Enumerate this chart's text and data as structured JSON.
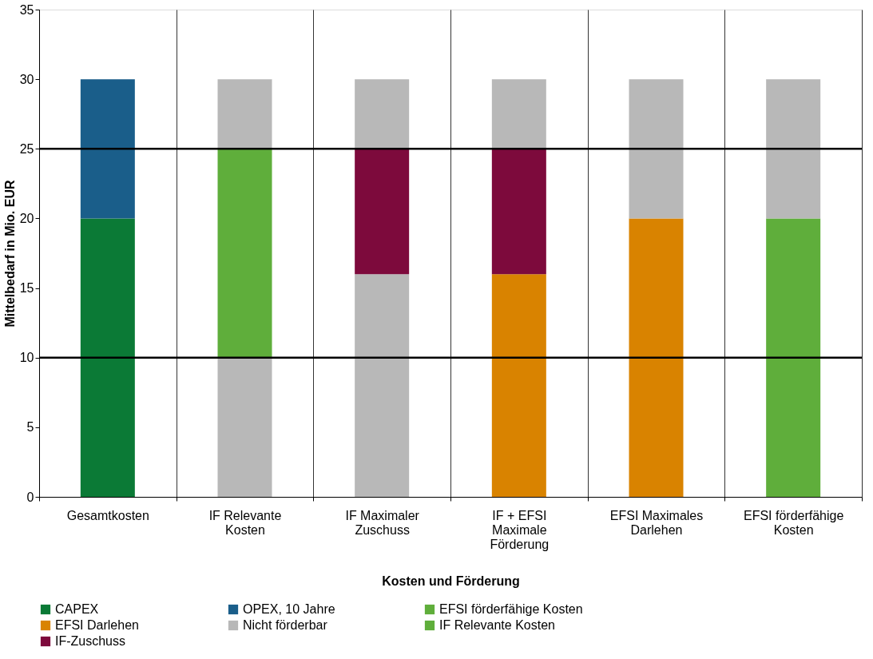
{
  "chart_data": {
    "type": "bar",
    "stacked": true,
    "xlabel": "Kosten und Förderung",
    "ylabel": "Mittelbedarf in Mio. EUR",
    "categories": [
      "Gesamtkosten",
      "IF Relevante\nKosten",
      "IF Maximaler\nZuschuss",
      "IF + EFSI\nMaximale\nFörderung",
      "EFSI Maximales\nDarlehen",
      "EFSI förderfähige\nKosten"
    ],
    "series": [
      {
        "name": "CAPEX",
        "color": "#0b7a36",
        "values": [
          20,
          null,
          null,
          null,
          null,
          null
        ]
      },
      {
        "name": "OPEX, 10 Jahre",
        "color": "#1a5e8a",
        "values": [
          10,
          null,
          null,
          null,
          null,
          null
        ]
      },
      {
        "name": "EFSI förderfähige Kosten",
        "color": "#5fae3b",
        "values": [
          null,
          null,
          null,
          null,
          null,
          20
        ]
      },
      {
        "name": "EFSI Darlehen",
        "color": "#d98300",
        "values": [
          null,
          null,
          null,
          16,
          20,
          null
        ]
      },
      {
        "name": "Nicht förderbar",
        "color": "#b8b8b8",
        "values": [
          null,
          10,
          16,
          null,
          null,
          null
        ]
      },
      {
        "name": "IF Relevante Kosten",
        "color": "#5fae3b",
        "values": [
          null,
          15,
          null,
          null,
          null,
          null
        ]
      },
      {
        "name": "IF-Zuschuss",
        "color": "#7d0a3c",
        "values": [
          null,
          null,
          9,
          9,
          null,
          null
        ]
      },
      {
        "color": "#b8b8b8",
        "values": [
          null,
          5,
          5,
          5,
          10,
          10
        ]
      }
    ],
    "ylim": [
      0,
      35
    ],
    "yticks": [
      0,
      5,
      10,
      15,
      20,
      25,
      30,
      35
    ],
    "ref_lines": [
      {
        "axis": "y",
        "value": 10,
        "color": "#000000"
      },
      {
        "axis": "y",
        "value": 25,
        "color": "#000000"
      }
    ],
    "grid": "x",
    "legend": "bottom"
  }
}
